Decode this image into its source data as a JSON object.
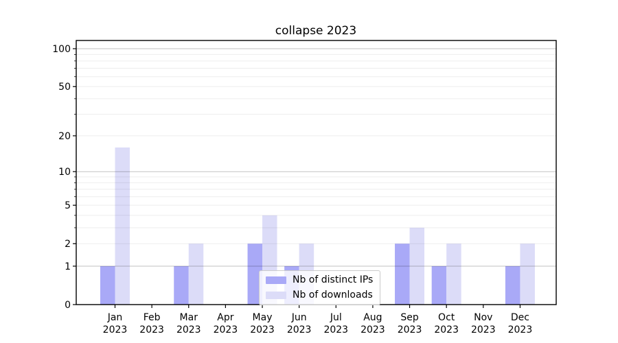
{
  "figure": {
    "title": "collapse 2023"
  },
  "chart_data": {
    "type": "bar",
    "title": "collapse 2023",
    "categories": [
      "Jan",
      "Feb",
      "Mar",
      "Apr",
      "May",
      "Jun",
      "Jul",
      "Aug",
      "Sep",
      "Oct",
      "Nov",
      "Dec"
    ],
    "category_year": "2023",
    "series": [
      {
        "name": "Nb of distinct IPs",
        "color": "#a9a9f7",
        "values": [
          1,
          0,
          1,
          0,
          2,
          1,
          0,
          0,
          2,
          1,
          0,
          1
        ]
      },
      {
        "name": "Nb of downloads",
        "color": "#dcdcf8",
        "values": [
          16,
          0,
          2,
          0,
          4,
          2,
          0,
          0,
          3,
          2,
          0,
          2
        ]
      }
    ],
    "yscale": "log1p",
    "ylim": [
      0,
      116
    ],
    "yticks": [
      0,
      1,
      2,
      5,
      10,
      20,
      50,
      100
    ],
    "grid_major_values": [
      1,
      10,
      100
    ],
    "grid_minor_values": [
      2,
      3,
      4,
      5,
      6,
      7,
      8,
      9,
      20,
      30,
      40,
      50,
      60,
      70,
      80,
      90
    ],
    "grid_on": true,
    "grid_above_bars": true,
    "legend_position": "lower center",
    "colors": {
      "grid_major": "#c3c3c3",
      "grid_minor": "#ededed",
      "axis": "#000000",
      "text": "#000000"
    }
  }
}
